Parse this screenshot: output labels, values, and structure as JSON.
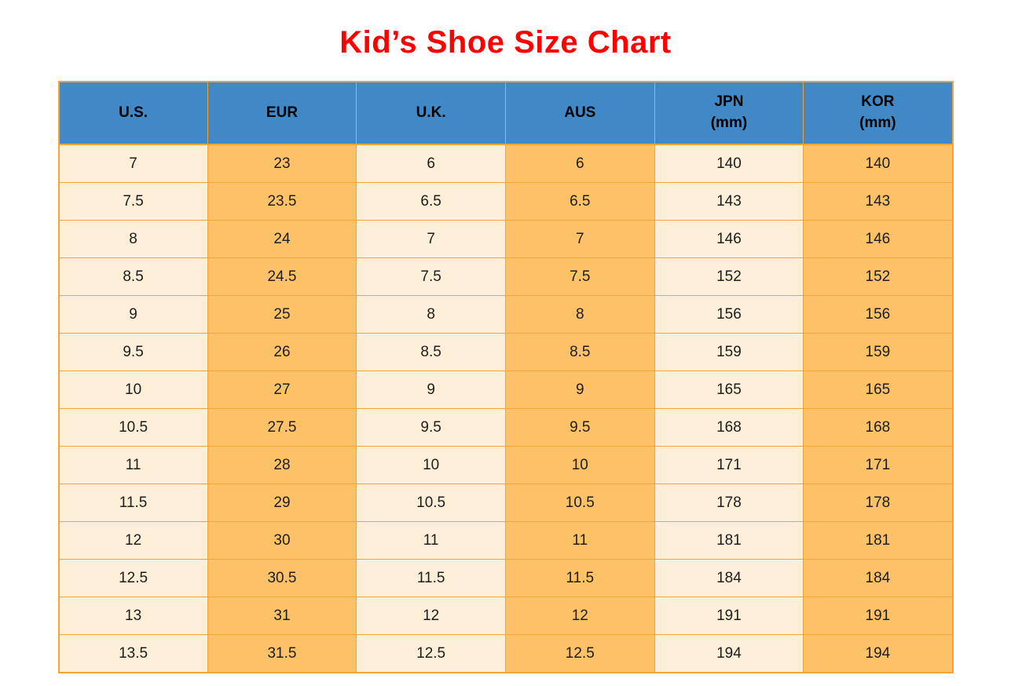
{
  "page": {
    "title": "Kid’s Shoe Size Chart"
  },
  "colors": {
    "title_red": "#fe0000",
    "header_blue": "#4189c6",
    "cell_cream": "#fdeed8",
    "cell_orange": "#fdc167",
    "border_orange": "#f1a438",
    "text_dark": "#1d1d1d"
  },
  "table": {
    "columns": [
      {
        "key": "us",
        "label": "U.S.",
        "sublabel": ""
      },
      {
        "key": "eur",
        "label": "EUR",
        "sublabel": ""
      },
      {
        "key": "uk",
        "label": "U.K.",
        "sublabel": ""
      },
      {
        "key": "aus",
        "label": "AUS",
        "sublabel": ""
      },
      {
        "key": "jpn",
        "label": "JPN",
        "sublabel": "(mm)"
      },
      {
        "key": "kor",
        "label": "KOR",
        "sublabel": "(mm)"
      }
    ],
    "rows": [
      [
        "7",
        "23",
        "6",
        "6",
        "140",
        "140"
      ],
      [
        "7.5",
        "23.5",
        "6.5",
        "6.5",
        "143",
        "143"
      ],
      [
        "8",
        "24",
        "7",
        "7",
        "146",
        "146"
      ],
      [
        "8.5",
        "24.5",
        "7.5",
        "7.5",
        "152",
        "152"
      ],
      [
        "9",
        "25",
        "8",
        "8",
        "156",
        "156"
      ],
      [
        "9.5",
        "26",
        "8.5",
        "8.5",
        "159",
        "159"
      ],
      [
        "10",
        "27",
        "9",
        "9",
        "165",
        "165"
      ],
      [
        "10.5",
        "27.5",
        "9.5",
        "9.5",
        "168",
        "168"
      ],
      [
        "11",
        "28",
        "10",
        "10",
        "171",
        "171"
      ],
      [
        "11.5",
        "29",
        "10.5",
        "10.5",
        "178",
        "178"
      ],
      [
        "12",
        "30",
        "11",
        "11",
        "181",
        "181"
      ],
      [
        "12.5",
        "30.5",
        "11.5",
        "11.5",
        "184",
        "184"
      ],
      [
        "13",
        "31",
        "12",
        "12",
        "191",
        "191"
      ],
      [
        "13.5",
        "31.5",
        "12.5",
        "12.5",
        "194",
        "194"
      ]
    ]
  },
  "chart_data": {
    "type": "table",
    "title": "Kid’s Shoe Size Chart",
    "columns": [
      "U.S.",
      "EUR",
      "U.K.",
      "AUS",
      "JPN (mm)",
      "KOR (mm)"
    ],
    "rows": [
      [
        7,
        23,
        6,
        6,
        140,
        140
      ],
      [
        7.5,
        23.5,
        6.5,
        6.5,
        143,
        143
      ],
      [
        8,
        24,
        7,
        7,
        146,
        146
      ],
      [
        8.5,
        24.5,
        7.5,
        7.5,
        152,
        152
      ],
      [
        9,
        25,
        8,
        8,
        156,
        156
      ],
      [
        9.5,
        26,
        8.5,
        8.5,
        159,
        159
      ],
      [
        10,
        27,
        9,
        9,
        165,
        165
      ],
      [
        10.5,
        27.5,
        9.5,
        9.5,
        168,
        168
      ],
      [
        11,
        28,
        10,
        10,
        171,
        171
      ],
      [
        11.5,
        29,
        10.5,
        10.5,
        178,
        178
      ],
      [
        12,
        30,
        11,
        11,
        181,
        181
      ],
      [
        12.5,
        30.5,
        11.5,
        11.5,
        184,
        184
      ],
      [
        13,
        31,
        12,
        12,
        191,
        191
      ],
      [
        13.5,
        31.5,
        12.5,
        12.5,
        194,
        194
      ]
    ],
    "layout": {
      "header_background": "#4189c6",
      "column_backgrounds": [
        "#fdeed8",
        "#fdc167",
        "#fdeed8",
        "#fdc167",
        "#fdeed8",
        "#fdc167"
      ],
      "grid": true,
      "grid_color": "#f1a438"
    }
  }
}
